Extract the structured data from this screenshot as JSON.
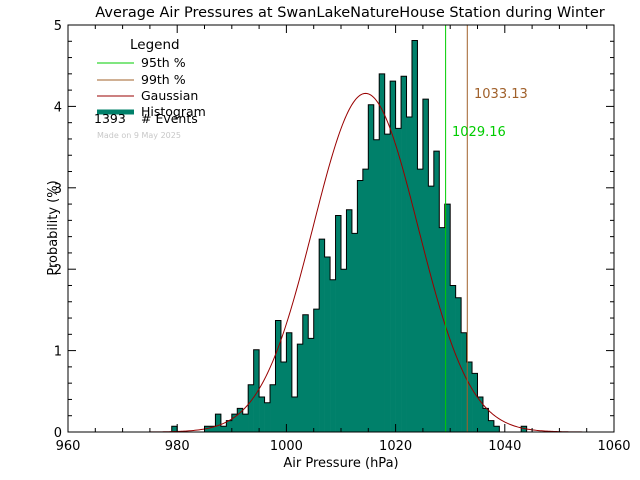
{
  "chart_data": {
    "type": "bar",
    "title": "Average Air Pressures at SwanLakeNatureHouse Station during Winter",
    "xlabel": "Air Pressure (hPa)",
    "ylabel": "Probability (%)",
    "xlim": [
      960,
      1060
    ],
    "ylim": [
      0,
      5
    ],
    "xticks": [
      "960",
      "980",
      "1000",
      "1020",
      "1040",
      "1060"
    ],
    "yticks": [
      "0",
      "1",
      "2",
      "3",
      "4",
      "5"
    ],
    "bin_width": 1,
    "bin_start": 979,
    "histogram": [
      0.07,
      0,
      0,
      0,
      0,
      0,
      0.07,
      0.07,
      0.22,
      0.07,
      0.14,
      0.22,
      0.29,
      0.22,
      0.58,
      1.01,
      0.43,
      0.36,
      0.58,
      1.37,
      0.86,
      1.22,
      0.43,
      1.08,
      1.44,
      1.15,
      1.51,
      2.37,
      2.15,
      1.87,
      2.66,
      2.0,
      2.73,
      2.44,
      3.09,
      3.23,
      4.02,
      3.59,
      4.4,
      3.66,
      4.31,
      3.73,
      4.37,
      3.87,
      4.81,
      3.23,
      4.09,
      3.02,
      3.45,
      2.51,
      2.8,
      1.8,
      1.65,
      1.22,
      0.86,
      0.72,
      0.43,
      0.29,
      0.14,
      0.07,
      0,
      0,
      0,
      0,
      0.07
    ],
    "gaussian": {
      "mean": 1014.5,
      "sigma": 9.6,
      "peak": 4.16
    },
    "p95": 1029.16,
    "p99": 1033.13,
    "p95_label": "1029.16",
    "p99_label": "1033.13",
    "colors": {
      "histogram": "#00806a",
      "gaussian": "#990000",
      "p95": "#00cc00",
      "p99": "#a0602a"
    },
    "legend": {
      "title": "Legend",
      "placement": "top-left",
      "items": [
        {
          "label": "95th %",
          "color": "#00cc00",
          "style": "line"
        },
        {
          "label": "99th %",
          "color": "#a0602a",
          "style": "line"
        },
        {
          "label": "Gaussian",
          "color": "#990000",
          "style": "line"
        },
        {
          "label": "Histogram",
          "color": "#00806a",
          "style": "thick"
        }
      ],
      "count": "1393",
      "count_label": "# Events",
      "made_on": "Made on 9 May 2025"
    }
  }
}
